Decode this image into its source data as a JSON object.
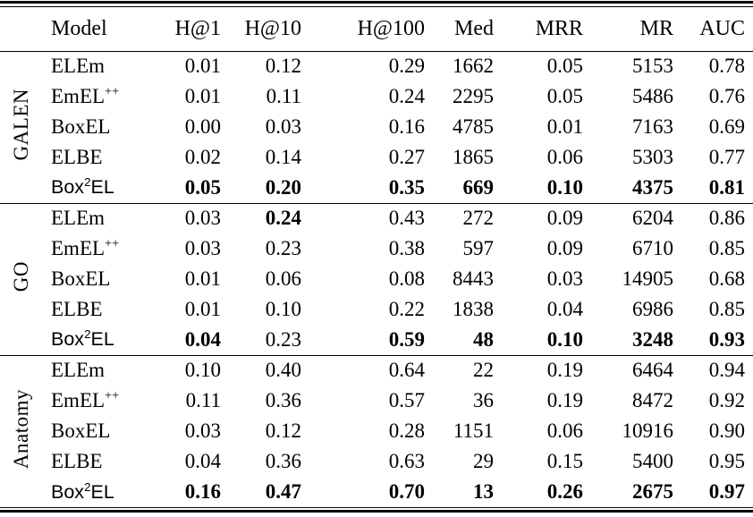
{
  "table": {
    "columns": [
      "Model",
      "H@1",
      "H@10",
      "H@100",
      "Med",
      "MRR",
      "MR",
      "AUC"
    ],
    "groups": [
      {
        "label": "GALEN",
        "rows": [
          {
            "model": {
              "base": "ELEm"
            },
            "values": [
              "0.01",
              "0.12",
              "0.29",
              "1662",
              "0.05",
              "5153",
              "0.78"
            ],
            "bold": [
              false,
              false,
              false,
              false,
              false,
              false,
              false
            ]
          },
          {
            "model": {
              "base": "EmEL",
              "sup": "++"
            },
            "values": [
              "0.01",
              "0.11",
              "0.24",
              "2295",
              "0.05",
              "5486",
              "0.76"
            ],
            "bold": [
              false,
              false,
              false,
              false,
              false,
              false,
              false
            ]
          },
          {
            "model": {
              "base": "BoxEL"
            },
            "values": [
              "0.00",
              "0.03",
              "0.16",
              "4785",
              "0.01",
              "7163",
              "0.69"
            ],
            "bold": [
              false,
              false,
              false,
              false,
              false,
              false,
              false
            ]
          },
          {
            "model": {
              "base": "ELBE"
            },
            "values": [
              "0.02",
              "0.14",
              "0.27",
              "1865",
              "0.06",
              "5303",
              "0.77"
            ],
            "bold": [
              false,
              false,
              false,
              false,
              false,
              false,
              false
            ]
          },
          {
            "model": {
              "base": "Box",
              "sup": "2",
              "after": "EL",
              "sans": true
            },
            "values": [
              "0.05",
              "0.20",
              "0.35",
              "669",
              "0.10",
              "4375",
              "0.81"
            ],
            "bold": [
              true,
              true,
              true,
              true,
              true,
              true,
              true
            ]
          }
        ]
      },
      {
        "label": "GO",
        "rows": [
          {
            "model": {
              "base": "ELEm"
            },
            "values": [
              "0.03",
              "0.24",
              "0.43",
              "272",
              "0.09",
              "6204",
              "0.86"
            ],
            "bold": [
              false,
              true,
              false,
              false,
              false,
              false,
              false
            ]
          },
          {
            "model": {
              "base": "EmEL",
              "sup": "++"
            },
            "values": [
              "0.03",
              "0.23",
              "0.38",
              "597",
              "0.09",
              "6710",
              "0.85"
            ],
            "bold": [
              false,
              false,
              false,
              false,
              false,
              false,
              false
            ]
          },
          {
            "model": {
              "base": "BoxEL"
            },
            "values": [
              "0.01",
              "0.06",
              "0.08",
              "8443",
              "0.03",
              "14905",
              "0.68"
            ],
            "bold": [
              false,
              false,
              false,
              false,
              false,
              false,
              false
            ]
          },
          {
            "model": {
              "base": "ELBE"
            },
            "values": [
              "0.01",
              "0.10",
              "0.22",
              "1838",
              "0.04",
              "6986",
              "0.85"
            ],
            "bold": [
              false,
              false,
              false,
              false,
              false,
              false,
              false
            ]
          },
          {
            "model": {
              "base": "Box",
              "sup": "2",
              "after": "EL",
              "sans": true
            },
            "values": [
              "0.04",
              "0.23",
              "0.59",
              "48",
              "0.10",
              "3248",
              "0.93"
            ],
            "bold": [
              true,
              false,
              true,
              true,
              true,
              true,
              true
            ]
          }
        ]
      },
      {
        "label": "Anatomy",
        "rows": [
          {
            "model": {
              "base": "ELEm"
            },
            "values": [
              "0.10",
              "0.40",
              "0.64",
              "22",
              "0.19",
              "6464",
              "0.94"
            ],
            "bold": [
              false,
              false,
              false,
              false,
              false,
              false,
              false
            ]
          },
          {
            "model": {
              "base": "EmEL",
              "sup": "++"
            },
            "values": [
              "0.11",
              "0.36",
              "0.57",
              "36",
              "0.19",
              "8472",
              "0.92"
            ],
            "bold": [
              false,
              false,
              false,
              false,
              false,
              false,
              false
            ]
          },
          {
            "model": {
              "base": "BoxEL"
            },
            "values": [
              "0.03",
              "0.12",
              "0.28",
              "1151",
              "0.06",
              "10916",
              "0.90"
            ],
            "bold": [
              false,
              false,
              false,
              false,
              false,
              false,
              false
            ]
          },
          {
            "model": {
              "base": "ELBE"
            },
            "values": [
              "0.04",
              "0.36",
              "0.63",
              "29",
              "0.15",
              "5400",
              "0.95"
            ],
            "bold": [
              false,
              false,
              false,
              false,
              false,
              false,
              false
            ]
          },
          {
            "model": {
              "base": "Box",
              "sup": "2",
              "after": "EL",
              "sans": true
            },
            "values": [
              "0.16",
              "0.47",
              "0.70",
              "13",
              "0.26",
              "2675",
              "0.97"
            ],
            "bold": [
              true,
              true,
              true,
              true,
              true,
              true,
              true
            ]
          }
        ]
      }
    ]
  }
}
